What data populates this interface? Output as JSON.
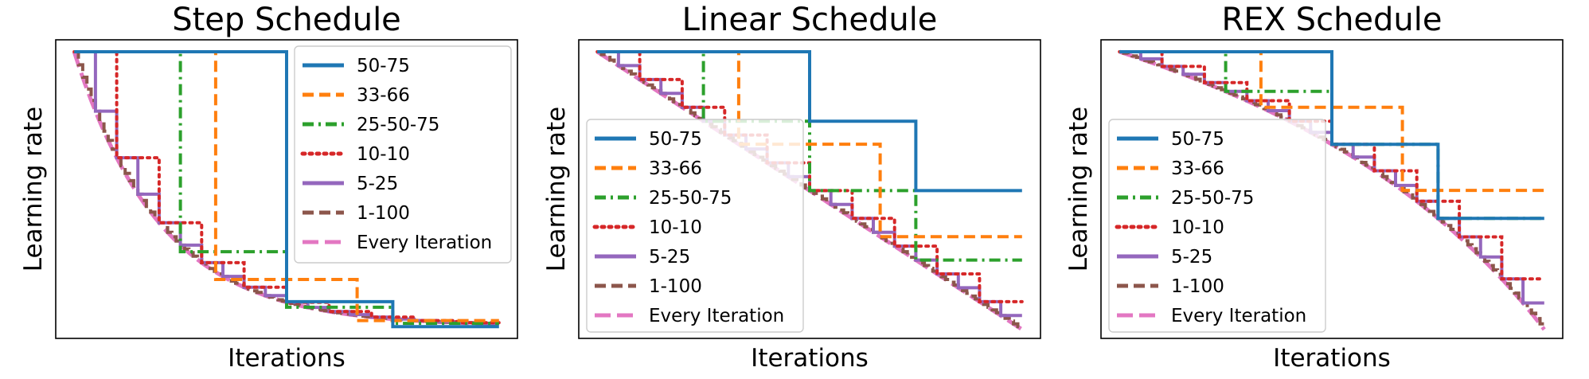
{
  "chart_data": [
    {
      "type": "line",
      "title": "Step Schedule",
      "xlabel": "Iterations",
      "ylabel": "Learning rate",
      "schedule": "step",
      "legend": "top-right",
      "grid": false,
      "xlim": [
        0,
        1
      ],
      "ylim": [
        0,
        1
      ],
      "series": [
        {
          "name": "50-75",
          "color": "#1f77b4",
          "dash": "solid",
          "points": [
            [
              0.0,
              1.0
            ],
            [
              0.5,
              1.0
            ],
            [
              0.5,
              0.1
            ],
            [
              0.75,
              0.1
            ],
            [
              0.75,
              0.01
            ],
            [
              1.0,
              0.01
            ]
          ]
        },
        {
          "name": "33-66",
          "color": "#ff7f0e",
          "dash": "dashed",
          "points": [
            [
              0.0,
              1.0
            ],
            [
              0.333,
              1.0
            ],
            [
              0.333,
              0.18
            ],
            [
              0.666,
              0.18
            ],
            [
              0.666,
              0.032
            ],
            [
              1.0,
              0.032
            ]
          ]
        },
        {
          "name": "25-50-75",
          "color": "#2ca02c",
          "dash": "dashdot",
          "points": [
            [
              0.0,
              1.0
            ],
            [
              0.25,
              1.0
            ],
            [
              0.25,
              0.28
            ],
            [
              0.5,
              0.28
            ],
            [
              0.5,
              0.08
            ],
            [
              0.75,
              0.08
            ],
            [
              0.75,
              0.022
            ],
            [
              1.0,
              0.022
            ]
          ]
        },
        {
          "name": "10-10",
          "color": "#d62728",
          "dash": "dotted",
          "points": []
        },
        {
          "name": "5-25",
          "color": "#9467bd",
          "dash": "solid",
          "points": []
        },
        {
          "name": "1-100",
          "color": "#8c564b",
          "dash": "dashed",
          "points": []
        },
        {
          "name": "Every Iteration",
          "color": "#e377c2",
          "dash": "longdash",
          "points": []
        }
      ]
    },
    {
      "type": "line",
      "title": "Linear Schedule",
      "xlabel": "Iterations",
      "ylabel": "Learning rate",
      "schedule": "linear",
      "legend": "bottom-left",
      "grid": false,
      "xlim": [
        0,
        1
      ],
      "ylim": [
        0,
        1
      ],
      "series": [
        {
          "name": "50-75",
          "color": "#1f77b4",
          "dash": "solid",
          "points": [
            [
              0.0,
              1.0
            ],
            [
              0.5,
              1.0
            ],
            [
              0.5,
              0.75
            ],
            [
              0.75,
              0.75
            ],
            [
              0.75,
              0.5
            ],
            [
              1.0,
              0.5
            ]
          ]
        },
        {
          "name": "33-66",
          "color": "#ff7f0e",
          "dash": "dashed",
          "points": []
        },
        {
          "name": "25-50-75",
          "color": "#2ca02c",
          "dash": "dashdot",
          "points": []
        },
        {
          "name": "10-10",
          "color": "#d62728",
          "dash": "dotted",
          "points": []
        },
        {
          "name": "5-25",
          "color": "#9467bd",
          "dash": "solid",
          "points": []
        },
        {
          "name": "1-100",
          "color": "#8c564b",
          "dash": "dashed",
          "points": []
        },
        {
          "name": "Every Iteration",
          "color": "#e377c2",
          "dash": "longdash",
          "points": []
        }
      ]
    },
    {
      "type": "line",
      "title": "REX Schedule",
      "xlabel": "Iterations",
      "ylabel": "Learning rate",
      "schedule": "rex",
      "legend": "bottom-left",
      "grid": false,
      "xlim": [
        0,
        1
      ],
      "ylim": [
        0,
        1
      ],
      "series": [
        {
          "name": "50-75",
          "color": "#1f77b4",
          "dash": "solid",
          "points": []
        },
        {
          "name": "33-66",
          "color": "#ff7f0e",
          "dash": "dashed",
          "points": []
        },
        {
          "name": "25-50-75",
          "color": "#2ca02c",
          "dash": "dashdot",
          "points": []
        },
        {
          "name": "10-10",
          "color": "#d62728",
          "dash": "dotted",
          "points": []
        },
        {
          "name": "5-25",
          "color": "#9467bd",
          "dash": "solid",
          "points": []
        },
        {
          "name": "1-100",
          "color": "#8c564b",
          "dash": "dashed",
          "points": []
        },
        {
          "name": "Every Iteration",
          "color": "#e377c2",
          "dash": "longdash",
          "points": []
        }
      ]
    }
  ]
}
